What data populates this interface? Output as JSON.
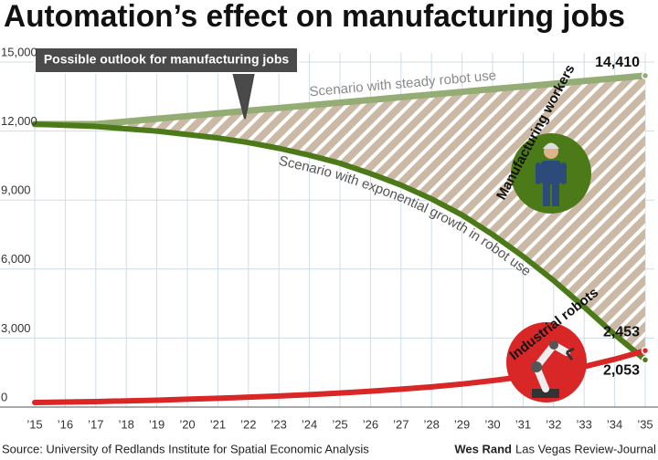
{
  "chart_data": {
    "type": "line",
    "title": "Automation’s effect on manufacturing jobs",
    "annotations": {
      "callout": "Possible outlook for manufacturing jobs",
      "workers": "Manufacturing workers"
    },
    "source": "Source: University of Redlands Institute for Spatial Economic Analysis",
    "credit_name": "Wes Rand",
    "credit_org": "Las Vegas Review-Journal",
    "categories": [
      "’15",
      "’16",
      "’17",
      "’18",
      "’19",
      "’20",
      "’21",
      "’22",
      "’23",
      "’24",
      "’25",
      "’26",
      "’27",
      "’28",
      "’29",
      "’30",
      "’31",
      "’32",
      "’33",
      "’34",
      "’35"
    ],
    "series": [
      {
        "name": "Scenario with steady robot use",
        "color": "#94ad74",
        "values": [
          12300,
          12300,
          12300,
          12417,
          12534,
          12651,
          12769,
          12886,
          13003,
          13120,
          13237,
          13355,
          13472,
          13589,
          13706,
          13823,
          13941,
          14058,
          14175,
          14292,
          14410
        ],
        "value_labels": [
          null,
          null,
          null,
          null,
          null,
          null,
          null,
          null,
          null,
          null,
          null,
          null,
          null,
          null,
          null,
          null,
          null,
          null,
          null,
          null,
          "14,410"
        ]
      },
      {
        "name": "Scenario with exponential growth in robot use",
        "color": "#4d7a19",
        "values": [
          12300,
          12250,
          12200,
          12100,
          12000,
          11850,
          11700,
          11500,
          11250,
          10950,
          10600,
          10150,
          9650,
          9050,
          8350,
          7500,
          6550,
          5500,
          4350,
          3150,
          2053
        ],
        "value_labels": [
          null,
          null,
          null,
          null,
          null,
          null,
          null,
          null,
          null,
          null,
          null,
          null,
          null,
          null,
          null,
          null,
          null,
          null,
          null,
          null,
          "2,053"
        ]
      },
      {
        "name": "Industrial robots",
        "color": "#d92626",
        "values": [
          200,
          220,
          240,
          270,
          300,
          340,
          380,
          430,
          480,
          540,
          610,
          690,
          780,
          880,
          1000,
          1150,
          1320,
          1520,
          1760,
          2080,
          2453
        ],
        "value_labels": [
          null,
          null,
          null,
          null,
          null,
          null,
          null,
          null,
          null,
          null,
          null,
          null,
          null,
          null,
          null,
          null,
          null,
          null,
          null,
          null,
          "2,453"
        ]
      }
    ],
    "ylim": [
      0,
      15000
    ],
    "yticks": [
      0,
      {
        "value": 3000,
        "label": "3,000"
      },
      {
        "value": 6000,
        "label": "6,000"
      },
      {
        "value": 9000,
        "label": "9,000"
      },
      {
        "value": 12000,
        "label": "12,000"
      },
      {
        "value": 15000,
        "label": "15,000"
      }
    ],
    "grid": true
  }
}
